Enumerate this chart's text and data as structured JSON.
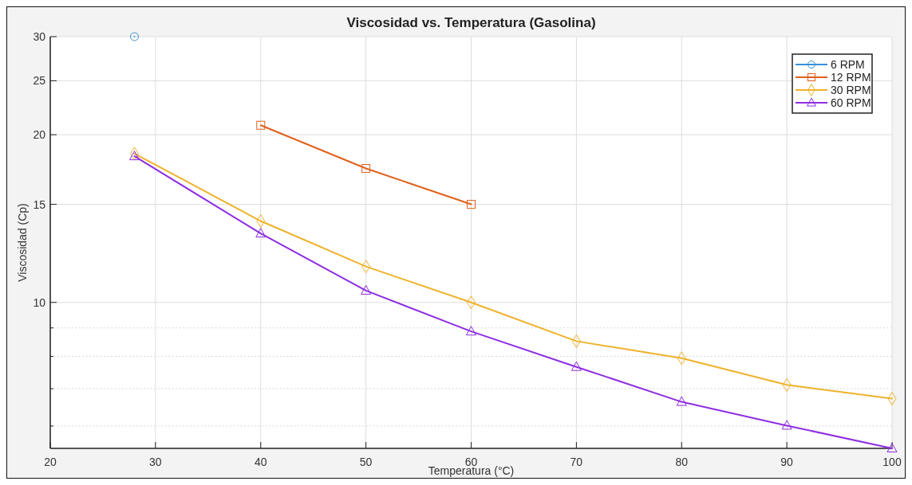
{
  "chart_data": {
    "type": "line",
    "title": "Viscosidad vs. Temperatura (Gasolina)",
    "xlabel": "Temperatura (°C)",
    "ylabel": "Viscosidad (Cp)",
    "log": "y",
    "xlim": [
      20,
      100
    ],
    "xticks": [
      20,
      30,
      40,
      50,
      60,
      70,
      80,
      90,
      100
    ],
    "ylim": [
      5.47,
      30
    ],
    "yticks": [
      10,
      15,
      20,
      25,
      30
    ],
    "grid": true,
    "legend": "top right",
    "line_style": "solid",
    "series": [
      {
        "name": "6 RPM",
        "color": "#3a8fd8",
        "marker": "circle",
        "x": [
          28
        ],
        "values": [
          30
        ]
      },
      {
        "name": "12 RPM",
        "color": "#e0601c",
        "marker": "square",
        "x": [
          40,
          50,
          60
        ],
        "values": [
          20.8,
          17.4,
          15.0
        ]
      },
      {
        "name": "30 RPM",
        "color": "#eeb22a",
        "marker": "diamond",
        "x": [
          28,
          40,
          50,
          60,
          70,
          80,
          90,
          100
        ],
        "values": [
          18.5,
          14.0,
          11.6,
          10.0,
          8.52,
          7.94,
          7.11,
          6.72
        ]
      },
      {
        "name": "60 RPM",
        "color": "#8e2de2",
        "marker": "triangle",
        "x": [
          28,
          40,
          50,
          60,
          70,
          80,
          90,
          100
        ],
        "values": [
          18.3,
          13.3,
          10.5,
          8.87,
          7.66,
          6.63,
          6.01,
          5.47
        ]
      }
    ]
  }
}
